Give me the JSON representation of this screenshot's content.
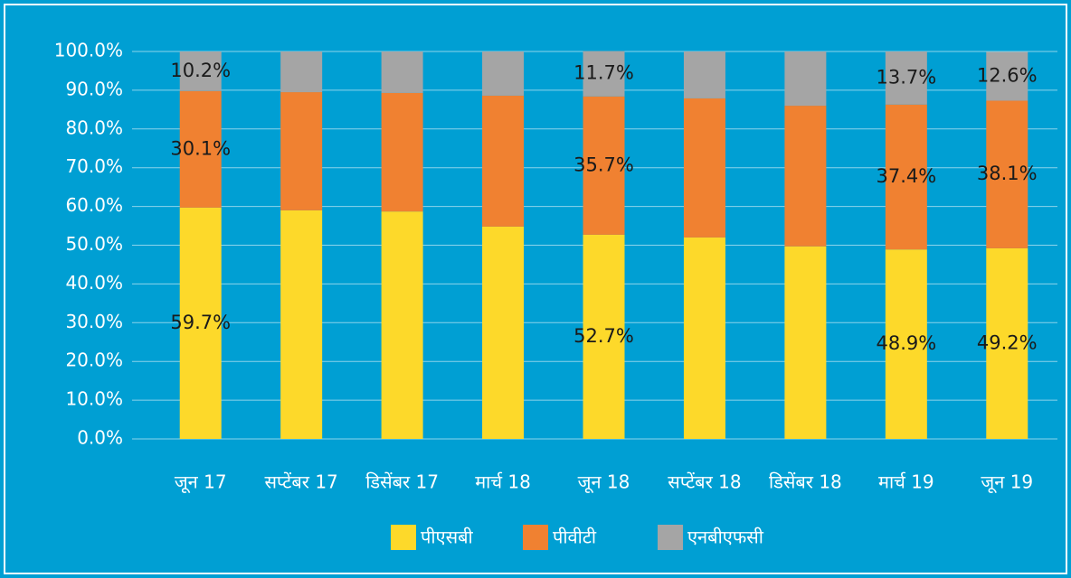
{
  "chart_data": {
    "type": "stacked_bar",
    "categories": [
      "जून 17",
      "सप्टेंबर 17",
      "डिसेंबर 17",
      "मार्च 18",
      "जून 18",
      "सप्टेंबर 18",
      "डिसेंबर 18",
      "मार्च 19",
      "जून 19"
    ],
    "series": [
      {
        "name": "पीएसबी",
        "color": "#fdd92a",
        "values": [
          59.7,
          59.0,
          58.7,
          54.8,
          52.7,
          52.0,
          49.7,
          48.9,
          49.2
        ],
        "value_labels": [
          "59.7%",
          null,
          null,
          null,
          "52.7%",
          null,
          null,
          "48.9%",
          "49.2%"
        ]
      },
      {
        "name": "पीवीटी",
        "color": "#f08131",
        "values": [
          30.1,
          30.5,
          30.6,
          33.8,
          35.7,
          35.9,
          36.3,
          37.4,
          38.1
        ],
        "value_labels": [
          "30.1%",
          null,
          null,
          null,
          "35.7%",
          null,
          null,
          "37.4%",
          "38.1%"
        ]
      },
      {
        "name": "एनबीएफसी",
        "color": "#a5a5a5",
        "values": [
          10.2,
          10.5,
          10.7,
          11.4,
          11.7,
          12.1,
          14.0,
          13.7,
          12.6
        ],
        "value_labels": [
          "10.2%",
          null,
          null,
          null,
          "11.7%",
          null,
          null,
          "13.7%",
          "12.6%"
        ]
      }
    ],
    "ylim": [
      0,
      100
    ],
    "yticks": [
      {
        "value": 0,
        "label": "0.0%"
      },
      {
        "value": 10,
        "label": "10.0%"
      },
      {
        "value": 20,
        "label": "20.0%"
      },
      {
        "value": 30,
        "label": "30.0%"
      },
      {
        "value": 40,
        "label": "40.0%"
      },
      {
        "value": 50,
        "label": "50.0%"
      },
      {
        "value": 60,
        "label": "60.0%"
      },
      {
        "value": 70,
        "label": "70.0%"
      },
      {
        "value": 80,
        "label": "80.0%"
      },
      {
        "value": 90,
        "label": "90.0%"
      },
      {
        "value": 100,
        "label": "100.0%"
      }
    ],
    "grid": true,
    "legend": "bottom"
  }
}
